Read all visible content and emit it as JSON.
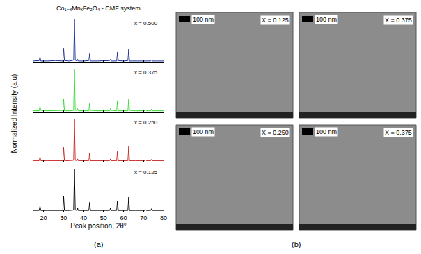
{
  "chart_data": {
    "type": "line",
    "title": "Co₁₋ₓMnₓFe₂O₄ - CMF system",
    "panel_label": "(a)",
    "xlabel": "Peak position, 2θ°",
    "ylabel": "Normalized Intensity (a.u)",
    "xlim": [
      15,
      80
    ],
    "xticks": [
      20,
      30,
      40,
      50,
      60,
      70,
      80
    ],
    "ylim": [
      0,
      1.1
    ],
    "tick_labels": "x",
    "x": [
      15,
      17.9,
      18.3,
      18.7,
      22,
      26,
      29.7,
      30.1,
      30.5,
      33,
      35.1,
      35.5,
      35.9,
      36.8,
      37.1,
      37.4,
      40,
      42.7,
      43.1,
      43.5,
      47,
      50,
      53.1,
      53.5,
      53.9,
      56.6,
      57.0,
      57.4,
      60,
      62.2,
      62.6,
      63.0,
      66,
      70.6,
      71.0,
      71.4,
      73.6,
      74.0,
      74.4,
      77,
      80
    ],
    "series": [
      {
        "name": "x = 0.500",
        "color": "#1a3399",
        "values": [
          0.03,
          0.04,
          0.13,
          0.03,
          0.03,
          0.04,
          0.03,
          0.33,
          0.04,
          0.03,
          0.05,
          1.0,
          0.05,
          0.03,
          0.07,
          0.03,
          0.03,
          0.04,
          0.2,
          0.03,
          0.03,
          0.03,
          0.04,
          0.07,
          0.03,
          0.03,
          0.24,
          0.04,
          0.03,
          0.04,
          0.31,
          0.03,
          0.03,
          0.03,
          0.04,
          0.03,
          0.03,
          0.06,
          0.03,
          0.03,
          0.03
        ]
      },
      {
        "name": "x = 0.375",
        "color": "#33dd33",
        "values": [
          0.03,
          0.03,
          0.14,
          0.04,
          0.03,
          0.03,
          0.04,
          0.3,
          0.03,
          0.03,
          0.04,
          1.0,
          0.04,
          0.04,
          0.08,
          0.03,
          0.03,
          0.03,
          0.2,
          0.04,
          0.03,
          0.03,
          0.03,
          0.08,
          0.04,
          0.03,
          0.27,
          0.03,
          0.03,
          0.03,
          0.3,
          0.04,
          0.03,
          0.03,
          0.05,
          0.03,
          0.03,
          0.07,
          0.03,
          0.03,
          0.03
        ]
      },
      {
        "name": "x = 0.250",
        "color": "#cc2222",
        "values": [
          0.03,
          0.03,
          0.12,
          0.03,
          0.03,
          0.03,
          0.03,
          0.34,
          0.03,
          0.03,
          0.04,
          1.0,
          0.04,
          0.03,
          0.07,
          0.03,
          0.03,
          0.03,
          0.21,
          0.03,
          0.03,
          0.03,
          0.03,
          0.07,
          0.03,
          0.03,
          0.25,
          0.03,
          0.03,
          0.03,
          0.36,
          0.03,
          0.03,
          0.03,
          0.05,
          0.03,
          0.03,
          0.06,
          0.03,
          0.03,
          0.03
        ]
      },
      {
        "name": "x = 0.125",
        "color": "#000000",
        "values": [
          0.03,
          0.03,
          0.13,
          0.03,
          0.03,
          0.03,
          0.03,
          0.36,
          0.03,
          0.03,
          0.04,
          1.0,
          0.04,
          0.03,
          0.08,
          0.03,
          0.03,
          0.03,
          0.22,
          0.03,
          0.03,
          0.03,
          0.03,
          0.08,
          0.03,
          0.03,
          0.26,
          0.03,
          0.03,
          0.03,
          0.34,
          0.03,
          0.03,
          0.03,
          0.05,
          0.03,
          0.03,
          0.07,
          0.03,
          0.03,
          0.03
        ]
      }
    ]
  },
  "images": {
    "panel_label": "(b)",
    "tiles": [
      {
        "scale_bar": "100 nm",
        "label": "X = 0.125"
      },
      {
        "scale_bar": "100 nm",
        "label": "X = 0.375"
      },
      {
        "scale_bar": "100 nm",
        "label": "X = 0.250"
      },
      {
        "scale_bar": "100 nm",
        "label": "X = 0.375"
      }
    ]
  }
}
